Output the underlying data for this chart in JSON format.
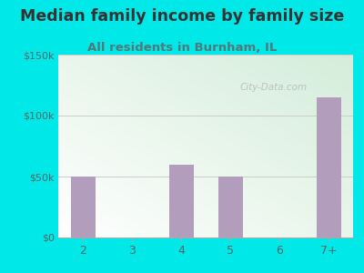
{
  "title": "Median family income by family size",
  "subtitle": "All residents in Burnham, IL",
  "categories": [
    "2",
    "3",
    "4",
    "5",
    "6",
    "7+"
  ],
  "values": [
    50000,
    0,
    60000,
    50000,
    0,
    115000
  ],
  "bar_color": "#b39dbd",
  "title_color": "#333333",
  "subtitle_color": "#557777",
  "bg_color": "#00e8e8",
  "plot_bg_top_left": "#c8e6c9",
  "plot_bg_bottom_right": "#f8fff8",
  "ylim": [
    0,
    150000
  ],
  "yticks": [
    0,
    50000,
    100000,
    150000
  ],
  "ytick_labels": [
    "$0",
    "$50k",
    "$100k",
    "$150k"
  ],
  "watermark": "City-Data.com",
  "title_fontsize": 12.5,
  "subtitle_fontsize": 9.5,
  "label_color": "#556666"
}
